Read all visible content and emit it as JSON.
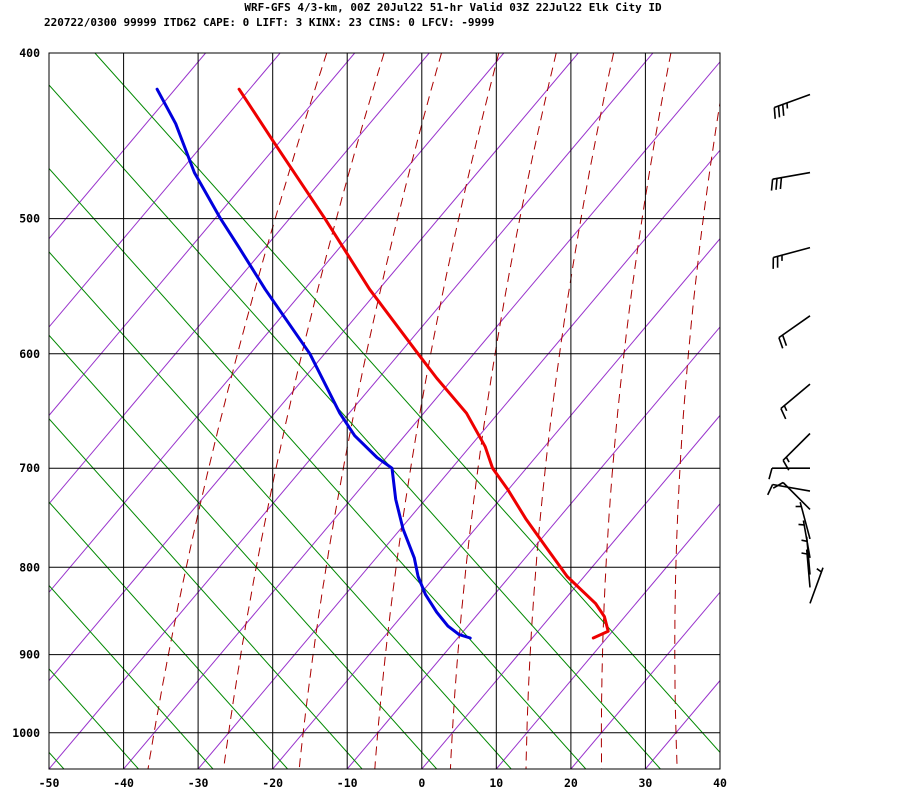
{
  "header": {
    "line1": "WRF-GFS 4/3-km, 00Z 20Jul22 51-hr Valid 03Z 22Jul22 Elk City ID",
    "line2": "220722/0300 99999  ITD62   CAPE:     0 LIFT:     3 KINX:    23 CINS:     0 LFCV: -9999"
  },
  "chart_data": {
    "type": "line",
    "title": "WRF-GFS 4/3-km, 00Z 20Jul22 51-hr Valid 03Z 22Jul22 Elk City ID",
    "xlabel": "",
    "ylabel": "",
    "x_axis": {
      "ticks": [
        "-50",
        "-40",
        "-30",
        "-20",
        "-10",
        "0",
        "10",
        "20",
        "30",
        "40"
      ],
      "range": [
        -50,
        40
      ]
    },
    "y_axis": {
      "scale": "log-pressure",
      "ticks": [
        "400",
        "500",
        "600",
        "700",
        "800",
        "900",
        "1000"
      ],
      "range": [
        1050,
        400
      ]
    },
    "grid": true,
    "colors": {
      "temperature": "#ee0000",
      "dewpoint": "#0000dd",
      "isotherm_skewed": "#9933cc",
      "dry_adiabat": "#aa0000",
      "mixing_ratio": "#008800",
      "grid": "#000000",
      "wind_barb": "#000000"
    },
    "series": [
      {
        "key": "temperature",
        "points": [
          {
            "p": 880,
            "t": 23.0
          },
          {
            "p": 872,
            "t": 25.0
          },
          {
            "p": 855,
            "t": 24.5
          },
          {
            "p": 840,
            "t": 23.3
          },
          {
            "p": 810,
            "t": 19.5
          },
          {
            "p": 780,
            "t": 16.8
          },
          {
            "p": 750,
            "t": 14.0
          },
          {
            "p": 720,
            "t": 11.5
          },
          {
            "p": 700,
            "t": 9.5
          },
          {
            "p": 680,
            "t": 8.5
          },
          {
            "p": 650,
            "t": 6.0
          },
          {
            "p": 620,
            "t": 2.0
          },
          {
            "p": 600,
            "t": -0.5
          },
          {
            "p": 550,
            "t": -7.0
          },
          {
            "p": 500,
            "t": -13.0
          },
          {
            "p": 450,
            "t": -20.0
          },
          {
            "p": 420,
            "t": -24.5
          }
        ]
      },
      {
        "key": "dewpoint",
        "points": [
          {
            "p": 880,
            "t": 6.5
          },
          {
            "p": 876,
            "t": 5.0
          },
          {
            "p": 866,
            "t": 3.5
          },
          {
            "p": 850,
            "t": 2.0
          },
          {
            "p": 830,
            "t": 0.5
          },
          {
            "p": 810,
            "t": -0.5
          },
          {
            "p": 790,
            "t": -1.0
          },
          {
            "p": 760,
            "t": -2.5
          },
          {
            "p": 730,
            "t": -3.5
          },
          {
            "p": 700,
            "t": -4.0
          },
          {
            "p": 690,
            "t": -6.0
          },
          {
            "p": 670,
            "t": -9.0
          },
          {
            "p": 650,
            "t": -11.0
          },
          {
            "p": 600,
            "t": -15.0
          },
          {
            "p": 550,
            "t": -21.0
          },
          {
            "p": 520,
            "t": -24.5
          },
          {
            "p": 500,
            "t": -27.0
          },
          {
            "p": 470,
            "t": -30.5
          },
          {
            "p": 440,
            "t": -33.0
          },
          {
            "p": 420,
            "t": -35.5
          }
        ]
      }
    ],
    "wind_barbs": [
      {
        "p": 423,
        "dir": 250,
        "kt": 35
      },
      {
        "p": 470,
        "dir": 260,
        "kt": 30
      },
      {
        "p": 520,
        "dir": 255,
        "kt": 25
      },
      {
        "p": 570,
        "dir": 235,
        "kt": 20
      },
      {
        "p": 625,
        "dir": 230,
        "kt": 15
      },
      {
        "p": 668,
        "dir": 225,
        "kt": 15
      },
      {
        "p": 700,
        "dir": 270,
        "kt": 10
      },
      {
        "p": 722,
        "dir": 280,
        "kt": 10
      },
      {
        "p": 740,
        "dir": 315,
        "kt": 10
      },
      {
        "p": 770,
        "dir": 345,
        "kt": 5
      },
      {
        "p": 790,
        "dir": 350,
        "kt": 5
      },
      {
        "p": 808,
        "dir": 355,
        "kt": 5
      },
      {
        "p": 822,
        "dir": 355,
        "kt": 5
      },
      {
        "p": 840,
        "dir": 20,
        "kt": 5
      }
    ]
  }
}
